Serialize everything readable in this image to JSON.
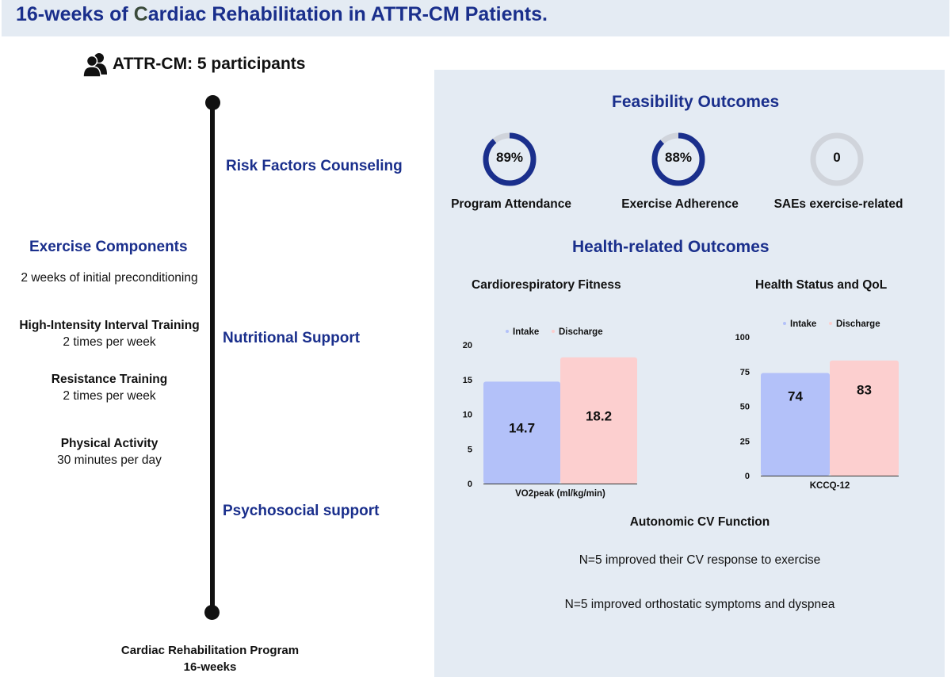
{
  "title": {
    "prefix": "16-weeks of ",
    "c_letter": "C",
    "suffix": "ardiac Rehabilitation in ATTR-CM  Patients."
  },
  "participants": {
    "icon": "people-icon",
    "text": "ATTR-CM: 5 participants"
  },
  "timeline": {
    "counseling": "Risk Factors Counseling",
    "nutrition": "Nutritional Support",
    "psychosocial": "Psychosocial support",
    "program_line1": "Cardiac Rehabilitation Program",
    "program_line2": "16-weeks"
  },
  "exercise": {
    "title": "Exercise Components",
    "preconditioning": "2 weeks of initial preconditioning",
    "hiit_title": "High-Intensity Interval Training",
    "hiit_freq": "2 times per week",
    "resistance_title": "Resistance Training",
    "resistance_freq": "2 times per week",
    "activity_title": "Physical Activity",
    "activity_freq": "30 minutes per day"
  },
  "feasibility": {
    "title": "Feasibility Outcomes",
    "items": [
      {
        "value": "89%",
        "fraction": 0.89,
        "label": "Program Attendance"
      },
      {
        "value": "88%",
        "fraction": 0.88,
        "label": "Exercise Adherence"
      },
      {
        "value": "0",
        "fraction": 0,
        "label": "SAEs  exercise-related"
      }
    ]
  },
  "health": {
    "title": "Health-related Outcomes"
  },
  "colors": {
    "ring_fill": "#1a2f8c",
    "ring_track": "#d0d4db",
    "intake": "#b3c1f9",
    "discharge": "#fccfcf",
    "heading": "#1a2f8c"
  },
  "chart_data": [
    {
      "type": "bar",
      "title": "Cardiorespiratory Fitness",
      "categories": [
        "VO2peak (ml/kg/min)"
      ],
      "series": [
        {
          "name": "Intake",
          "values": [
            14.7
          ],
          "label": "14.7"
        },
        {
          "name": "Discharge",
          "values": [
            18.2
          ],
          "label": "18.2"
        }
      ],
      "ylim": [
        0,
        20
      ],
      "yticks": [
        "0",
        "5",
        "10",
        "15",
        "20"
      ],
      "xlabel": "VO2peak (ml/kg/min)",
      "legend": "top"
    },
    {
      "type": "bar",
      "title": "Health Status and QoL",
      "categories": [
        "KCCQ-12"
      ],
      "series": [
        {
          "name": "Intake",
          "values": [
            74
          ],
          "label": "74"
        },
        {
          "name": "Discharge",
          "values": [
            83
          ],
          "label": "83"
        }
      ],
      "ylim": [
        0,
        100
      ],
      "yticks": [
        "0",
        "25",
        "50",
        "75",
        "100"
      ],
      "xlabel": "KCCQ-12",
      "legend": "top"
    }
  ],
  "autonomic": {
    "title": "Autonomic CV Function",
    "line1": "N=5  improved their CV response to  exercise",
    "line2": "N=5  improved orthostatic symptoms and dyspnea"
  }
}
